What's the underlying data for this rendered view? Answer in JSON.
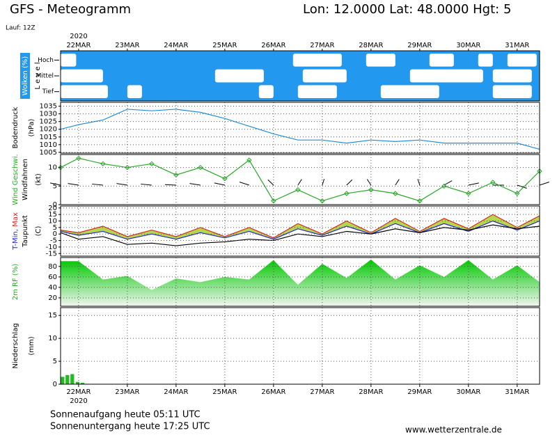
{
  "header": {
    "title": "GFS - Meteogramm",
    "location": "Lon: 12.0000 Lat: 48.0000 Hgt: 5",
    "run": "Lauf: 12Z"
  },
  "xaxis": {
    "year": "2020",
    "xlim": [
      -0.37,
      9.46
    ],
    "xticks": [
      {
        "value": 0,
        "label": "22MAR"
      },
      {
        "value": 1,
        "label": "23MAR"
      },
      {
        "value": 2,
        "label": "24MAR"
      },
      {
        "value": 3,
        "label": "25MAR"
      },
      {
        "value": 4,
        "label": "26MAR"
      },
      {
        "value": 5,
        "label": "27MAR"
      },
      {
        "value": 6,
        "label": "28MAR"
      },
      {
        "value": 7,
        "label": "29MAR"
      },
      {
        "value": 8,
        "label": "30MAR"
      },
      {
        "value": 9,
        "label": "31MAR"
      }
    ]
  },
  "chart_data": [
    {
      "type": "clouds",
      "background": "#2299ee",
      "ylabel": [
        [
          {
            "text": "Wolken (%)",
            "color": "#ffffff"
          }
        ],
        [
          {
            "text": "L e v e l",
            "color": "#000000"
          }
        ]
      ],
      "levels": [
        {
          "name": "Hoch",
          "intervals": [
            [
              -0.37,
              -0.05
            ],
            [
              4.4,
              5.4
            ],
            [
              5.9,
              6.5
            ],
            [
              7.2,
              7.7
            ],
            [
              8.2,
              8.5
            ],
            [
              8.8,
              9.4
            ]
          ]
        },
        {
          "name": "Mittel",
          "intervals": [
            [
              -0.37,
              0.5
            ],
            [
              2.8,
              3.8
            ],
            [
              4.6,
              5.5
            ],
            [
              6.8,
              8.3
            ],
            [
              8.5,
              9.3
            ]
          ]
        },
        {
          "name": "Tief",
          "intervals": [
            [
              -0.37,
              0.6
            ],
            [
              1.0,
              1.3
            ],
            [
              3.7,
              4.0
            ],
            [
              4.5,
              5.3
            ],
            [
              6.2,
              7.4
            ],
            [
              8.5,
              9.3
            ]
          ]
        }
      ]
    },
    {
      "type": "line",
      "grid": true,
      "ylabel": [
        [
          {
            "text": "Bodendruck",
            "color": "#000000"
          }
        ],
        [
          {
            "text": "(hPa)",
            "color": "#000000"
          }
        ]
      ],
      "ylim": [
        1004.5,
        1037.5
      ],
      "yticks": [
        1005,
        1010,
        1015,
        1020,
        1025,
        1030,
        1035
      ],
      "x": [
        -0.37,
        0,
        0.5,
        1,
        1.5,
        2,
        2.5,
        3,
        3.5,
        4,
        4.5,
        5,
        5.5,
        6,
        6.5,
        7,
        7.5,
        8,
        8.5,
        9,
        9.46
      ],
      "series": [
        {
          "color": "#1e8fd8",
          "values": [
            1020,
            1023,
            1026,
            1033,
            1032,
            1033,
            1031,
            1027,
            1022,
            1017,
            1013,
            1013,
            1011,
            1013,
            1012,
            1013,
            1011,
            1011,
            1011,
            1011,
            1007
          ]
        }
      ]
    },
    {
      "type": "line",
      "grid": true,
      "ylabel": [
        [
          {
            "text": "Wind Geschwi.",
            "color": "#22aa22"
          }
        ],
        [
          {
            "text": "Windfahnen",
            "color": "#000000"
          }
        ],
        [
          {
            "text": "(kt)",
            "color": "#000000"
          }
        ]
      ],
      "ylim": [
        0,
        13.5
      ],
      "yticks": [
        0,
        5,
        10
      ],
      "x": [
        -0.37,
        0,
        0.5,
        1,
        1.5,
        2,
        2.5,
        3,
        3.5,
        4,
        4.5,
        5,
        5.5,
        6,
        6.5,
        7,
        7.5,
        8,
        8.5,
        9,
        9.46
      ],
      "series": [
        {
          "color": "#22aa22",
          "marker": true,
          "values": [
            10,
            12.5,
            11,
            10,
            11,
            8,
            10,
            7,
            12,
            1,
            4,
            1,
            3,
            4,
            3,
            1,
            5,
            3,
            6,
            3,
            9
          ]
        }
      ],
      "direction": [
        290,
        285,
        280,
        285,
        280,
        275,
        285,
        290,
        300,
        330,
        20,
        10,
        30,
        340,
        20,
        350,
        45,
        70,
        90,
        120,
        60
      ]
    },
    {
      "type": "line",
      "grid": true,
      "ylabel": [
        [
          {
            "text": "T-Min,",
            "color": "#2222dd"
          },
          {
            "text": " Max",
            "color": "#dd2222"
          }
        ],
        [
          {
            "text": "Taupunkt",
            "color": "#000000"
          }
        ],
        [
          {
            "text": "(C)",
            "color": "#000000"
          }
        ]
      ],
      "ylim": [
        -17,
        21.5
      ],
      "yticks": [
        -15,
        -10,
        -5,
        0,
        5,
        10,
        15,
        20
      ],
      "x": [
        -0.37,
        0,
        0.5,
        1,
        1.5,
        2,
        2.5,
        3,
        3.5,
        4,
        4.5,
        5,
        5.5,
        6,
        6.5,
        7,
        7.5,
        8,
        8.5,
        9,
        9.46
      ],
      "band": {
        "from": 1,
        "to": 0,
        "color": "#a8d030"
      },
      "series": [
        {
          "color": "#dd2222",
          "values": [
            3,
            1,
            6,
            -2,
            3,
            -2,
            5,
            -2,
            5,
            -3,
            8,
            0,
            10,
            1,
            12,
            2,
            12,
            4,
            15,
            5,
            14
          ]
        },
        {
          "color": "#2222dd",
          "values": [
            2,
            -1,
            2,
            -4,
            0,
            -4,
            1,
            -3,
            2,
            -4,
            4,
            -1,
            6,
            0,
            8,
            1,
            8,
            2,
            10,
            3,
            10
          ]
        },
        {
          "color": "#000000",
          "values": [
            1,
            -4,
            -2,
            -8,
            -7,
            -9,
            -7,
            -6,
            -4,
            -5,
            0,
            -2,
            2,
            0,
            4,
            1,
            5,
            3,
            7,
            4,
            6
          ]
        }
      ]
    },
    {
      "type": "area",
      "grid": true,
      "ylabel": [
        [
          {
            "text": "2m RF (%)",
            "color": "#22aa22"
          }
        ]
      ],
      "ylim": [
        4,
        97
      ],
      "yticks": [
        20,
        40,
        60,
        80
      ],
      "x": [
        -0.37,
        0,
        0.5,
        1,
        1.5,
        2,
        2.5,
        3,
        3.5,
        4,
        4.5,
        5,
        5.5,
        6,
        6.5,
        7,
        7.5,
        8,
        8.5,
        9,
        9.46
      ],
      "series": [
        {
          "color": "#00c800",
          "values": [
            90,
            90,
            55,
            62,
            35,
            57,
            50,
            60,
            55,
            92,
            45,
            85,
            58,
            93,
            55,
            82,
            60,
            92,
            55,
            82,
            50
          ]
        }
      ]
    },
    {
      "type": "bar",
      "grid": true,
      "ylabel": [
        [
          {
            "text": "Niederschlag",
            "color": "#000000"
          }
        ],
        [
          {
            "text": "(mm)",
            "color": "#000000"
          }
        ]
      ],
      "ylim": [
        0,
        16.7
      ],
      "yticks": [
        0,
        5,
        10,
        15
      ],
      "x": [
        -0.33,
        -0.23,
        -0.13,
        -0.02,
        0.08
      ],
      "series": [
        {
          "color": "#22bb22",
          "values": [
            1.6,
            2.0,
            2.2,
            0.5,
            0.3
          ]
        }
      ]
    }
  ],
  "footer": {
    "sunrise": "Sonnenaufgang heute 05:11 UTC",
    "sunset": "Sonnenuntergang heute 17:25 UTC",
    "site": "www.wetterzentrale.de"
  }
}
